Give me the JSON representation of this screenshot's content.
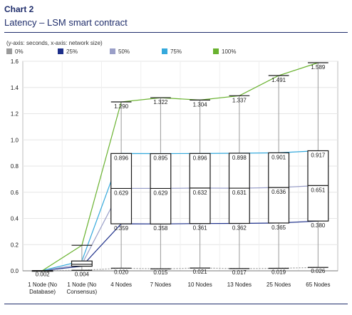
{
  "header": {
    "chart_label": "Chart 2",
    "chart_title": "Latency – LSM smart contract",
    "axis_note": "(y-axis: seconds, x-axis: network size)"
  },
  "colors": {
    "p0": "#9a9a9a",
    "p25": "#1d2f8a",
    "p50": "#9a9fc8",
    "p75": "#35a9dc",
    "p100": "#69b22f"
  },
  "chart_data": {
    "type": "box",
    "title": "Latency – LSM smart contract",
    "xlabel": "network size",
    "ylabel": "seconds",
    "ylim": [
      0,
      1.6
    ],
    "yticks": [
      "0.0",
      "0.2",
      "0.4",
      "0.6",
      "0.8",
      "1.0",
      "1.2",
      "1.4",
      "1.6"
    ],
    "grid": true,
    "legend_position": "top",
    "categories": [
      [
        "1 Node (No",
        "Database)"
      ],
      [
        "1 Node (No",
        "Consensus)"
      ],
      [
        "4 Nodes"
      ],
      [
        "7 Nodes"
      ],
      [
        "10 Nodes"
      ],
      [
        "13 Nodes"
      ],
      [
        "25 Nodes"
      ],
      [
        "65 Nodes"
      ]
    ],
    "series": [
      {
        "name": "0%",
        "values": [
          0.002,
          0.004,
          0.02,
          0.015,
          0.021,
          0.017,
          0.019,
          0.026
        ]
      },
      {
        "name": "25%",
        "values": [
          0.002,
          0.035,
          0.359,
          0.358,
          0.361,
          0.362,
          0.365,
          0.38
        ]
      },
      {
        "name": "50%",
        "values": [
          0.002,
          0.05,
          0.629,
          0.629,
          0.632,
          0.631,
          0.636,
          0.651
        ]
      },
      {
        "name": "75%",
        "values": [
          0.002,
          0.075,
          0.896,
          0.895,
          0.896,
          0.898,
          0.901,
          0.917
        ]
      },
      {
        "name": "100%",
        "values": [
          0.002,
          0.195,
          1.29,
          1.322,
          1.304,
          1.337,
          1.491,
          1.589
        ]
      }
    ],
    "labels": {
      "min": [
        "0.002",
        "0.004",
        "0.020",
        "0.015",
        "0.021",
        "0.017",
        "0.019",
        "0.026"
      ],
      "q1": [
        null,
        null,
        "0.359",
        "0.358",
        "0.361",
        "0.362",
        "0.365",
        "0.380"
      ],
      "median": [
        null,
        null,
        "0.629",
        "0.629",
        "0.632",
        "0.631",
        "0.636",
        "0.651"
      ],
      "q3": [
        null,
        null,
        "0.896",
        "0.895",
        "0.896",
        "0.898",
        "0.901",
        "0.917"
      ],
      "max": [
        null,
        null,
        "1.290",
        "1.322",
        "1.304",
        "1.337",
        "1.491",
        "1.589"
      ]
    }
  }
}
